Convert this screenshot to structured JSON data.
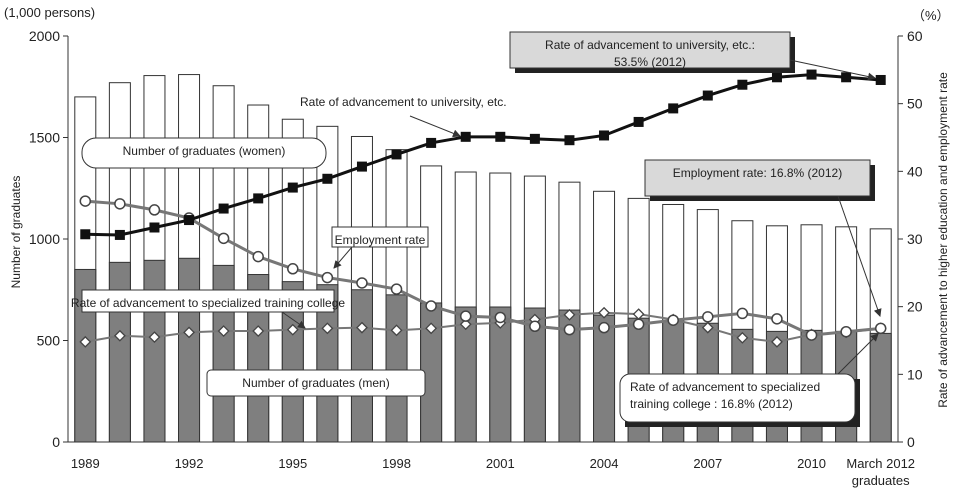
{
  "chart_data": {
    "type": "bar",
    "categories": [
      "1989",
      "1990",
      "1991",
      "1992",
      "1993",
      "1994",
      "1995",
      "1996",
      "1997",
      "1998",
      "1999",
      "2000",
      "2001",
      "2002",
      "2003",
      "2004",
      "2005",
      "2006",
      "2007",
      "2008",
      "2009",
      "2010",
      "2011",
      "March 2012"
    ],
    "x_tick_labels": [
      "1989",
      "1992",
      "1995",
      "1998",
      "2001",
      "2004",
      "2007",
      "2010",
      "March 2012"
    ],
    "x_tick_sublabel": "graduates",
    "left_unit": "(1,000 persons)",
    "right_unit": "（%）",
    "ylabel": "Number of graduates",
    "ylabel_right": "Rate of advancement to higher education  and employment rate",
    "ylim": [
      0,
      2000
    ],
    "ylim_right": [
      0,
      60
    ],
    "y_ticks": [
      0,
      500,
      1000,
      1500,
      2000
    ],
    "y_ticks_right": [
      0,
      10,
      20,
      30,
      40,
      50,
      60
    ],
    "series": [
      {
        "name": "Number of graduates (women)",
        "axis": "left",
        "kind": "bar-total",
        "values": [
          1700,
          1770,
          1805,
          1810,
          1755,
          1660,
          1590,
          1555,
          1505,
          1440,
          1360,
          1330,
          1325,
          1310,
          1280,
          1235,
          1200,
          1170,
          1145,
          1090,
          1065,
          1070,
          1060,
          1050
        ]
      },
      {
        "name": "Number of graduates (men)",
        "axis": "left",
        "kind": "bar-men",
        "values": [
          850,
          885,
          895,
          905,
          870,
          825,
          790,
          775,
          750,
          725,
          685,
          665,
          665,
          660,
          650,
          625,
          610,
          600,
          585,
          555,
          545,
          550,
          545,
          535
        ]
      },
      {
        "name": "Rate of advancement to university, etc.",
        "axis": "right",
        "marker": "square",
        "values": [
          30.7,
          30.6,
          31.7,
          32.8,
          34.5,
          36.0,
          37.6,
          38.9,
          40.7,
          42.5,
          44.2,
          45.1,
          45.1,
          44.8,
          44.6,
          45.3,
          47.3,
          49.3,
          51.2,
          52.8,
          53.9,
          54.3,
          53.9,
          53.5
        ]
      },
      {
        "name": "Employment rate",
        "axis": "right",
        "marker": "circle",
        "values": [
          35.6,
          35.2,
          34.3,
          33.1,
          30.1,
          27.4,
          25.6,
          24.3,
          23.5,
          22.6,
          20.1,
          18.6,
          18.4,
          17.1,
          16.6,
          16.9,
          17.4,
          18.0,
          18.5,
          19.0,
          18.2,
          15.8,
          16.3,
          16.8
        ]
      },
      {
        "name": "Rate of advancement to specialized training college",
        "axis": "right",
        "marker": "diamond",
        "values": [
          14.8,
          15.7,
          15.5,
          16.2,
          16.4,
          16.4,
          16.6,
          16.8,
          16.9,
          16.5,
          16.8,
          17.4,
          17.6,
          18.1,
          18.8,
          19.1,
          18.9,
          18.1,
          16.9,
          15.4,
          14.8,
          15.9,
          16.2,
          16.8
        ]
      }
    ],
    "annotations": {
      "women_label": "Number of graduates (women)",
      "men_label": "Number of graduates (men)",
      "univ_label": "Rate of advancement to university, etc.",
      "univ_callout": [
        "Rate of advancement to university, etc.:",
        "53.5% (2012)"
      ],
      "emp_label": "Employment rate",
      "emp_callout": "Employment rate: 16.8% (2012)",
      "spec_label": "Rate of advancement to specialized training college",
      "spec_callout": [
        "Rate of advancement to specialized",
        "training college : 16.8% (2012)"
      ]
    }
  },
  "colors": {
    "women_bar": "#ffffff",
    "men_bar": "#7f7f7f",
    "bar_stroke": "#333333",
    "line_dark": "#111111",
    "line_gray": "#777777",
    "callout_fill": "#d9d9d9",
    "shadow": "#222222"
  }
}
